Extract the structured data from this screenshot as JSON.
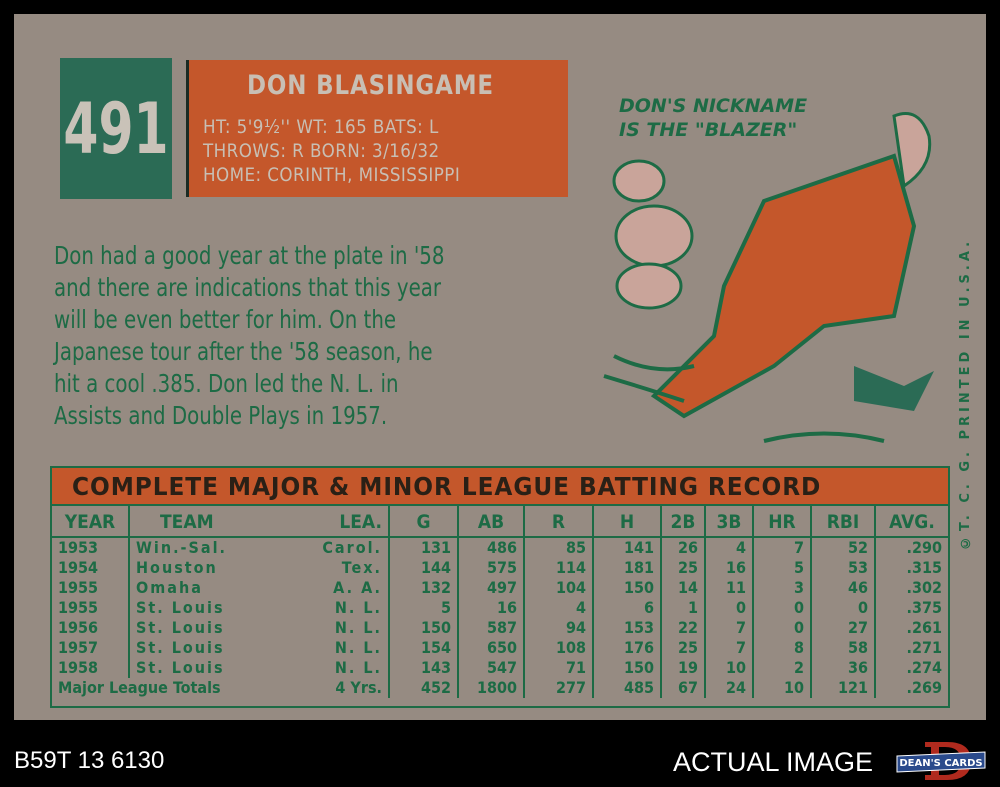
{
  "card": {
    "number": "491",
    "name": "DON BLASINGAME",
    "vitals": [
      "HT: 5'9½''   WT: 165   BATS: L",
      "THROWS: R        BORN: 3/16/32",
      "HOME: CORINTH, MISSISSIPPI"
    ],
    "bio": [
      "Don had a good year at the plate in '58",
      "and there are indications that this year",
      "will be even better for him. On the",
      "Japanese tour after the '58 season, he",
      "hit a cool .385. Don led the N. L. in",
      "Assists and Double Plays in 1957."
    ],
    "cartoon_caption": [
      "DON'S NICKNAME",
      "IS THE \"BLAZER\""
    ],
    "printed": "©T. C. G. PRINTED IN U.S.A.",
    "table_title": "COMPLETE MAJOR & MINOR LEAGUE BATTING RECORD",
    "columns": [
      "YEAR",
      "TEAM",
      "LEA.",
      "G",
      "AB",
      "R",
      "H",
      "2B",
      "3B",
      "HR",
      "RBI",
      "AVG."
    ],
    "rows": [
      [
        "1953",
        "Win.-Sal.",
        "Carol.",
        "131",
        "486",
        "85",
        "141",
        "26",
        "4",
        "7",
        "52",
        ".290"
      ],
      [
        "1954",
        "Houston",
        "Tex.",
        "144",
        "575",
        "114",
        "181",
        "25",
        "16",
        "5",
        "53",
        ".315"
      ],
      [
        "1955",
        "Omaha",
        "A. A.",
        "132",
        "497",
        "104",
        "150",
        "14",
        "11",
        "3",
        "46",
        ".302"
      ],
      [
        "1955",
        "St. Louis",
        "N. L.",
        "5",
        "16",
        "4",
        "6",
        "1",
        "0",
        "0",
        "0",
        ".375"
      ],
      [
        "1956",
        "St. Louis",
        "N. L.",
        "150",
        "587",
        "94",
        "153",
        "22",
        "7",
        "0",
        "27",
        ".261"
      ],
      [
        "1957",
        "St. Louis",
        "N. L.",
        "154",
        "650",
        "108",
        "176",
        "25",
        "7",
        "8",
        "58",
        ".271"
      ],
      [
        "1958",
        "St. Louis",
        "N. L.",
        "143",
        "547",
        "71",
        "150",
        "19",
        "10",
        "2",
        "36",
        ".274"
      ]
    ],
    "totals": [
      "Major League Totals",
      "4 Yrs.",
      "452",
      "1800",
      "277",
      "485",
      "67",
      "24",
      "10",
      "121",
      ".269"
    ],
    "colors": {
      "card": "#968b82",
      "green": "#2b6b55",
      "orange": "#c4572b",
      "ink": "#1d6b45"
    }
  },
  "footer": {
    "cert": "B59T 13 6130",
    "label": "ACTUAL IMAGE",
    "logo_text": "DEAN'S CARDS"
  }
}
